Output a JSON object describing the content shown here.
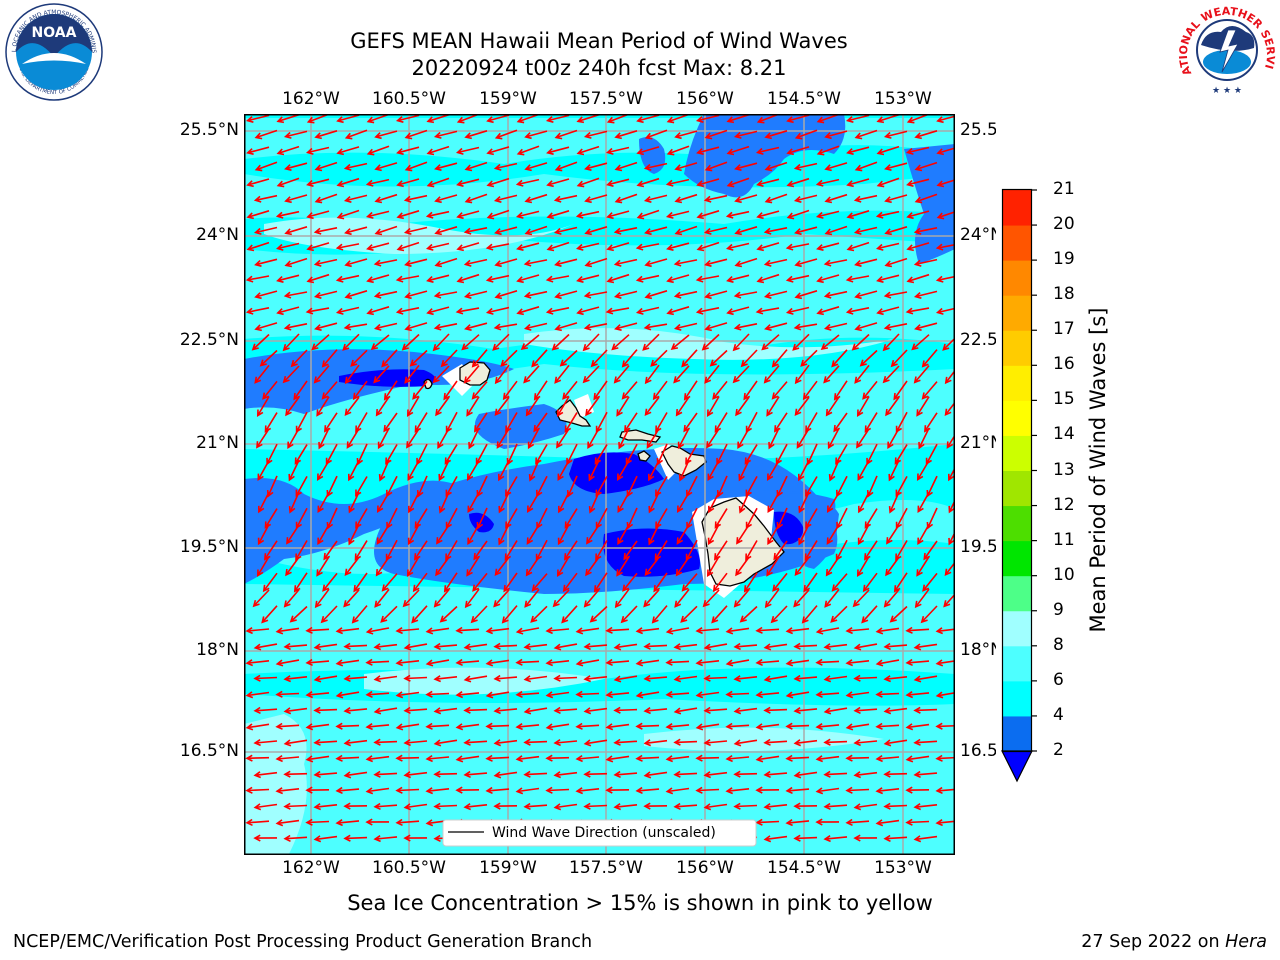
{
  "header": {
    "title_line1": "GEFS MEAN Hawaii Mean Period of Wind Waves",
    "title_line2": "20220924 t00z 240h fcst   Max: 8.21"
  },
  "logos": {
    "noaa": {
      "label": "NOAA",
      "ring_text": "NATIONAL OCEANIC AND ATMOSPHERIC ADMINISTRATION",
      "ring_text_bottom": "U.S. DEPARTMENT OF COMMERCE"
    },
    "nws": {
      "ring_text": "NATIONAL WEATHER SERVICE"
    }
  },
  "map": {
    "lon_labels": [
      "162°W",
      "160.5°W",
      "159°W",
      "157.5°W",
      "156°W",
      "154.5°W",
      "153°W"
    ],
    "lat_labels": [
      "25.5°N",
      "24°N",
      "22.5°N",
      "21°N",
      "19.5°N",
      "18°N",
      "16.5°N"
    ],
    "legend_label": "Wind Wave Direction (unscaled)",
    "colors": {
      "ocean_main": "#00ffff",
      "ocean_light": "#4dffff",
      "ocean_mid": "#1f7cff",
      "ocean_deep": "#0000ff",
      "land": "#efeedc",
      "arrow": "#ff0000",
      "grid": "#aaaaaa"
    }
  },
  "colorbar": {
    "label": "Mean Period of Wind Waves [s]",
    "ticks": [
      "2",
      "4",
      "6",
      "8",
      "9",
      "10",
      "11",
      "12",
      "13",
      "14",
      "15",
      "16",
      "17",
      "18",
      "19",
      "20",
      "21"
    ],
    "colors": [
      "#0b6df0",
      "#00ffff",
      "#4dffff",
      "#a0ffff",
      "#4dff88",
      "#00e600",
      "#4dde00",
      "#a0e600",
      "#ccff00",
      "#ffff00",
      "#ffee00",
      "#ffcc00",
      "#ffaa00",
      "#ff8800",
      "#ff5500",
      "#ff2200"
    ],
    "under_color": "#0000ff"
  },
  "caption": "Sea Ice Concentration > 15% is shown in pink to yellow",
  "footer": {
    "left": "NCEP/EMC/Verification Post Processing Product Generation Branch",
    "right_date": "27 Sep 2022 on ",
    "right_host": "Hera"
  }
}
